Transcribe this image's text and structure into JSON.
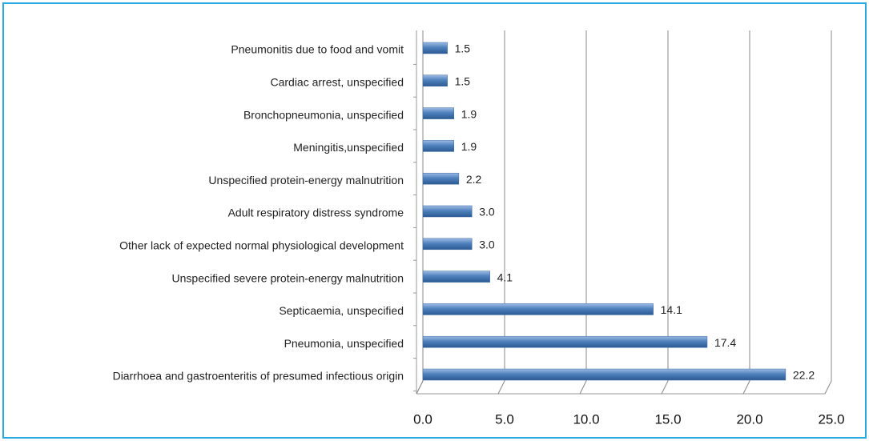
{
  "chart_data": {
    "type": "bar",
    "orientation": "horizontal",
    "categories": [
      "Pneumonitis due to food and vomit",
      "Cardiac arrest, unspecified",
      "Bronchopneumonia, unspecified",
      "Meningitis,unspecified",
      "Unspecified protein-energy malnutrition",
      "Adult respiratory distress syndrome",
      "Other lack of expected normal physiological development",
      "Unspecified severe protein-energy malnutrition",
      "Septicaemia, unspecified",
      "Pneumonia, unspecified",
      "Diarrhoea and gastroenteritis of presumed infectious origin"
    ],
    "values": [
      1.5,
      1.5,
      1.9,
      1.9,
      2.2,
      3.0,
      3.0,
      4.1,
      14.1,
      17.4,
      22.2
    ],
    "value_labels": [
      "1.5",
      "1.5",
      "1.9",
      "1.9",
      "2.2",
      "3.0",
      "3.0",
      "4.1",
      "14.1",
      "17.4",
      "22.2"
    ],
    "color": "#4f81bd",
    "xlim": [
      0,
      25
    ],
    "xticks": [
      {
        "value": 0,
        "label": "0.0"
      },
      {
        "value": 5,
        "label": "5.0"
      },
      {
        "value": 10,
        "label": "10.0"
      },
      {
        "value": 15,
        "label": "15.0"
      },
      {
        "value": 20,
        "label": "20.0"
      },
      {
        "value": 25,
        "label": "25.0"
      }
    ],
    "grid": true
  }
}
